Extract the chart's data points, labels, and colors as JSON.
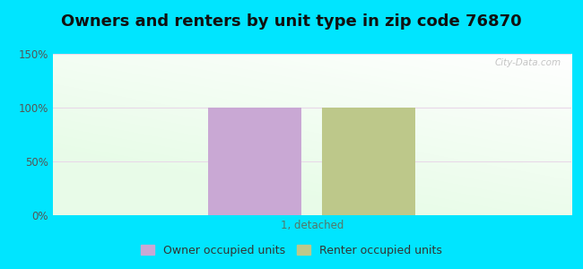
{
  "title": "Owners and renters by unit type in zip code 76870",
  "categories": [
    "1, detached"
  ],
  "owner_values": [
    100
  ],
  "renter_values": [
    100
  ],
  "owner_color": "#c9a8d4",
  "renter_color": "#bdc88a",
  "ylim": [
    0,
    150
  ],
  "yticks": [
    0,
    50,
    100,
    150
  ],
  "ytick_labels": [
    "0%",
    "50%",
    "100%",
    "150%"
  ],
  "bar_width": 0.18,
  "bar_gap": 0.04,
  "legend_owner": "Owner occupied units",
  "legend_renter": "Renter occupied units",
  "watermark": "City-Data.com",
  "cyan_bg": "#00e5ff",
  "title_fontsize": 13,
  "axis_fontsize": 8.5,
  "legend_fontsize": 9
}
